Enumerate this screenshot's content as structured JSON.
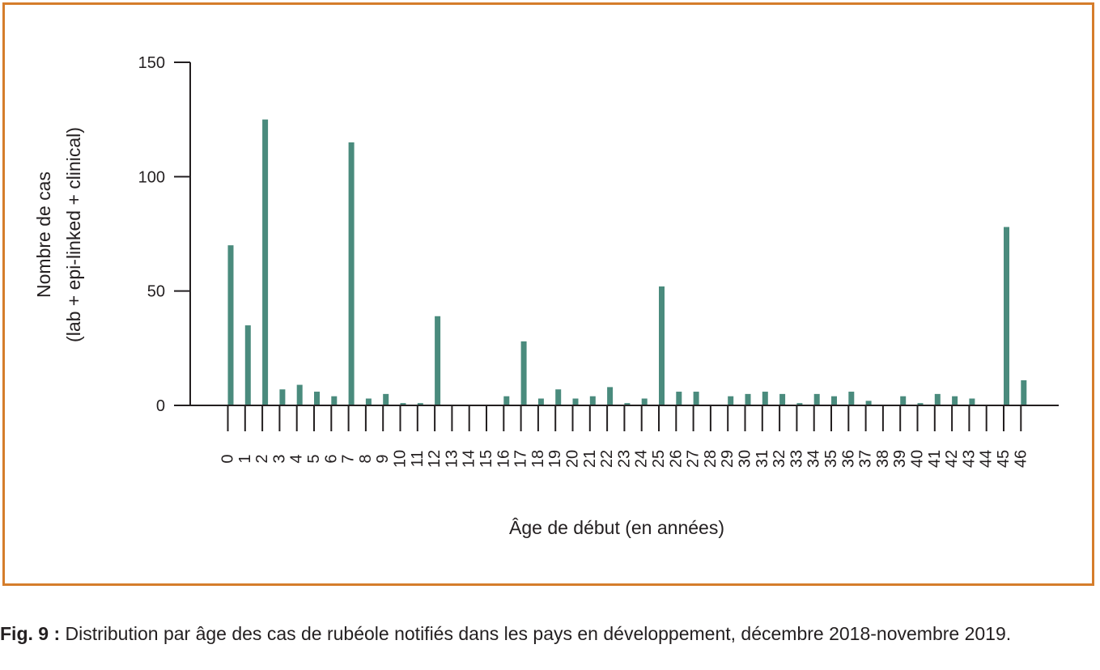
{
  "chart_data": {
    "type": "bar",
    "title": "",
    "xlabel": "Âge de début (en années)",
    "ylabel_line1": "Nombre de cas",
    "ylabel_line2": "(lab + epi-linked + clinical)",
    "ylim": [
      0,
      150
    ],
    "yticks": [
      "0",
      "50",
      "100",
      "150"
    ],
    "categories": [
      "0",
      "1",
      "2",
      "3",
      "4",
      "5",
      "6",
      "7",
      "8",
      "9",
      "10",
      "11",
      "12",
      "13",
      "14",
      "15",
      "16",
      "17",
      "18",
      "19",
      "20",
      "21",
      "22",
      "23",
      "24",
      "25",
      "26",
      "27",
      "28",
      "29",
      "30",
      "31",
      "32",
      "33",
      "34",
      "35",
      "36",
      "37",
      "38",
      "39",
      "40",
      "41",
      "42",
      "43",
      "44",
      "45",
      "46"
    ],
    "values": [
      70,
      35,
      125,
      7,
      9,
      6,
      4,
      115,
      3,
      5,
      1,
      1,
      39,
      0,
      0,
      0,
      4,
      28,
      3,
      7,
      3,
      4,
      8,
      1,
      3,
      52,
      6,
      6,
      0,
      4,
      5,
      6,
      5,
      1,
      5,
      4,
      6,
      2,
      0,
      4,
      1,
      5,
      4,
      3,
      0,
      78,
      11
    ],
    "grid": false,
    "legend": "none",
    "bar_color": "#4a8b7d"
  },
  "caption": {
    "label": "Fig. 9 :",
    "text": " Distribution par âge des cas de rubéole notifiés dans les pays en développement, décembre 2018-novembre 2019."
  }
}
